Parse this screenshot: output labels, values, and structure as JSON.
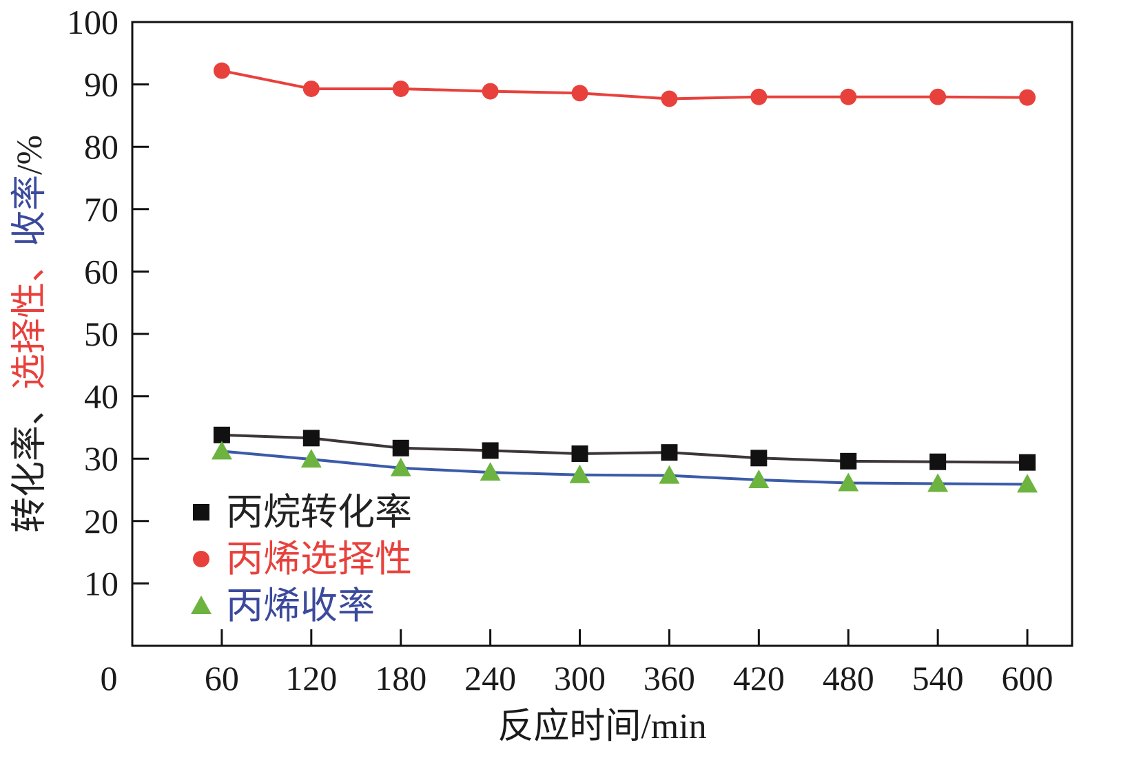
{
  "chart_data": {
    "type": "line",
    "title": "",
    "xlabel": "反应时间/min",
    "ylabel_parts": [
      {
        "text": "转化率、",
        "color": "#222222"
      },
      {
        "text": "选择性、",
        "color": "#e8413c"
      },
      {
        "text": "收率",
        "color": "#3b4a9c"
      },
      {
        "text": "/%",
        "color": "#222222"
      }
    ],
    "x": [
      60,
      120,
      180,
      240,
      300,
      360,
      420,
      480,
      540,
      600
    ],
    "xlim": [
      0,
      630
    ],
    "ylim": [
      0,
      100
    ],
    "xticks": [
      0,
      60,
      120,
      180,
      240,
      300,
      360,
      420,
      480,
      540,
      600
    ],
    "yticks": [
      10,
      20,
      30,
      40,
      50,
      60,
      70,
      80,
      90,
      100
    ],
    "grid": false,
    "legend_position": "bottom-left",
    "series": [
      {
        "name": "丙烷转化率",
        "marker": "square",
        "marker_color": "#111111",
        "line_color": "#3d3636",
        "text_color": "#222222",
        "values": [
          33.8,
          33.3,
          31.7,
          31.3,
          30.8,
          31.0,
          30.1,
          29.6,
          29.5,
          29.4
        ]
      },
      {
        "name": "丙烯选择性",
        "marker": "circle",
        "marker_color": "#e8413c",
        "line_color": "#e8413c",
        "text_color": "#e8413c",
        "values": [
          92.2,
          89.3,
          89.3,
          88.9,
          88.6,
          87.7,
          88.0,
          88.0,
          88.0,
          87.9
        ]
      },
      {
        "name": "丙烯收率",
        "marker": "triangle",
        "marker_color": "#6cb33f",
        "line_color": "#3b5ba8",
        "text_color": "#3b4a9c",
        "values": [
          31.2,
          29.9,
          28.5,
          27.8,
          27.4,
          27.3,
          26.6,
          26.1,
          26.0,
          25.9
        ]
      }
    ]
  }
}
